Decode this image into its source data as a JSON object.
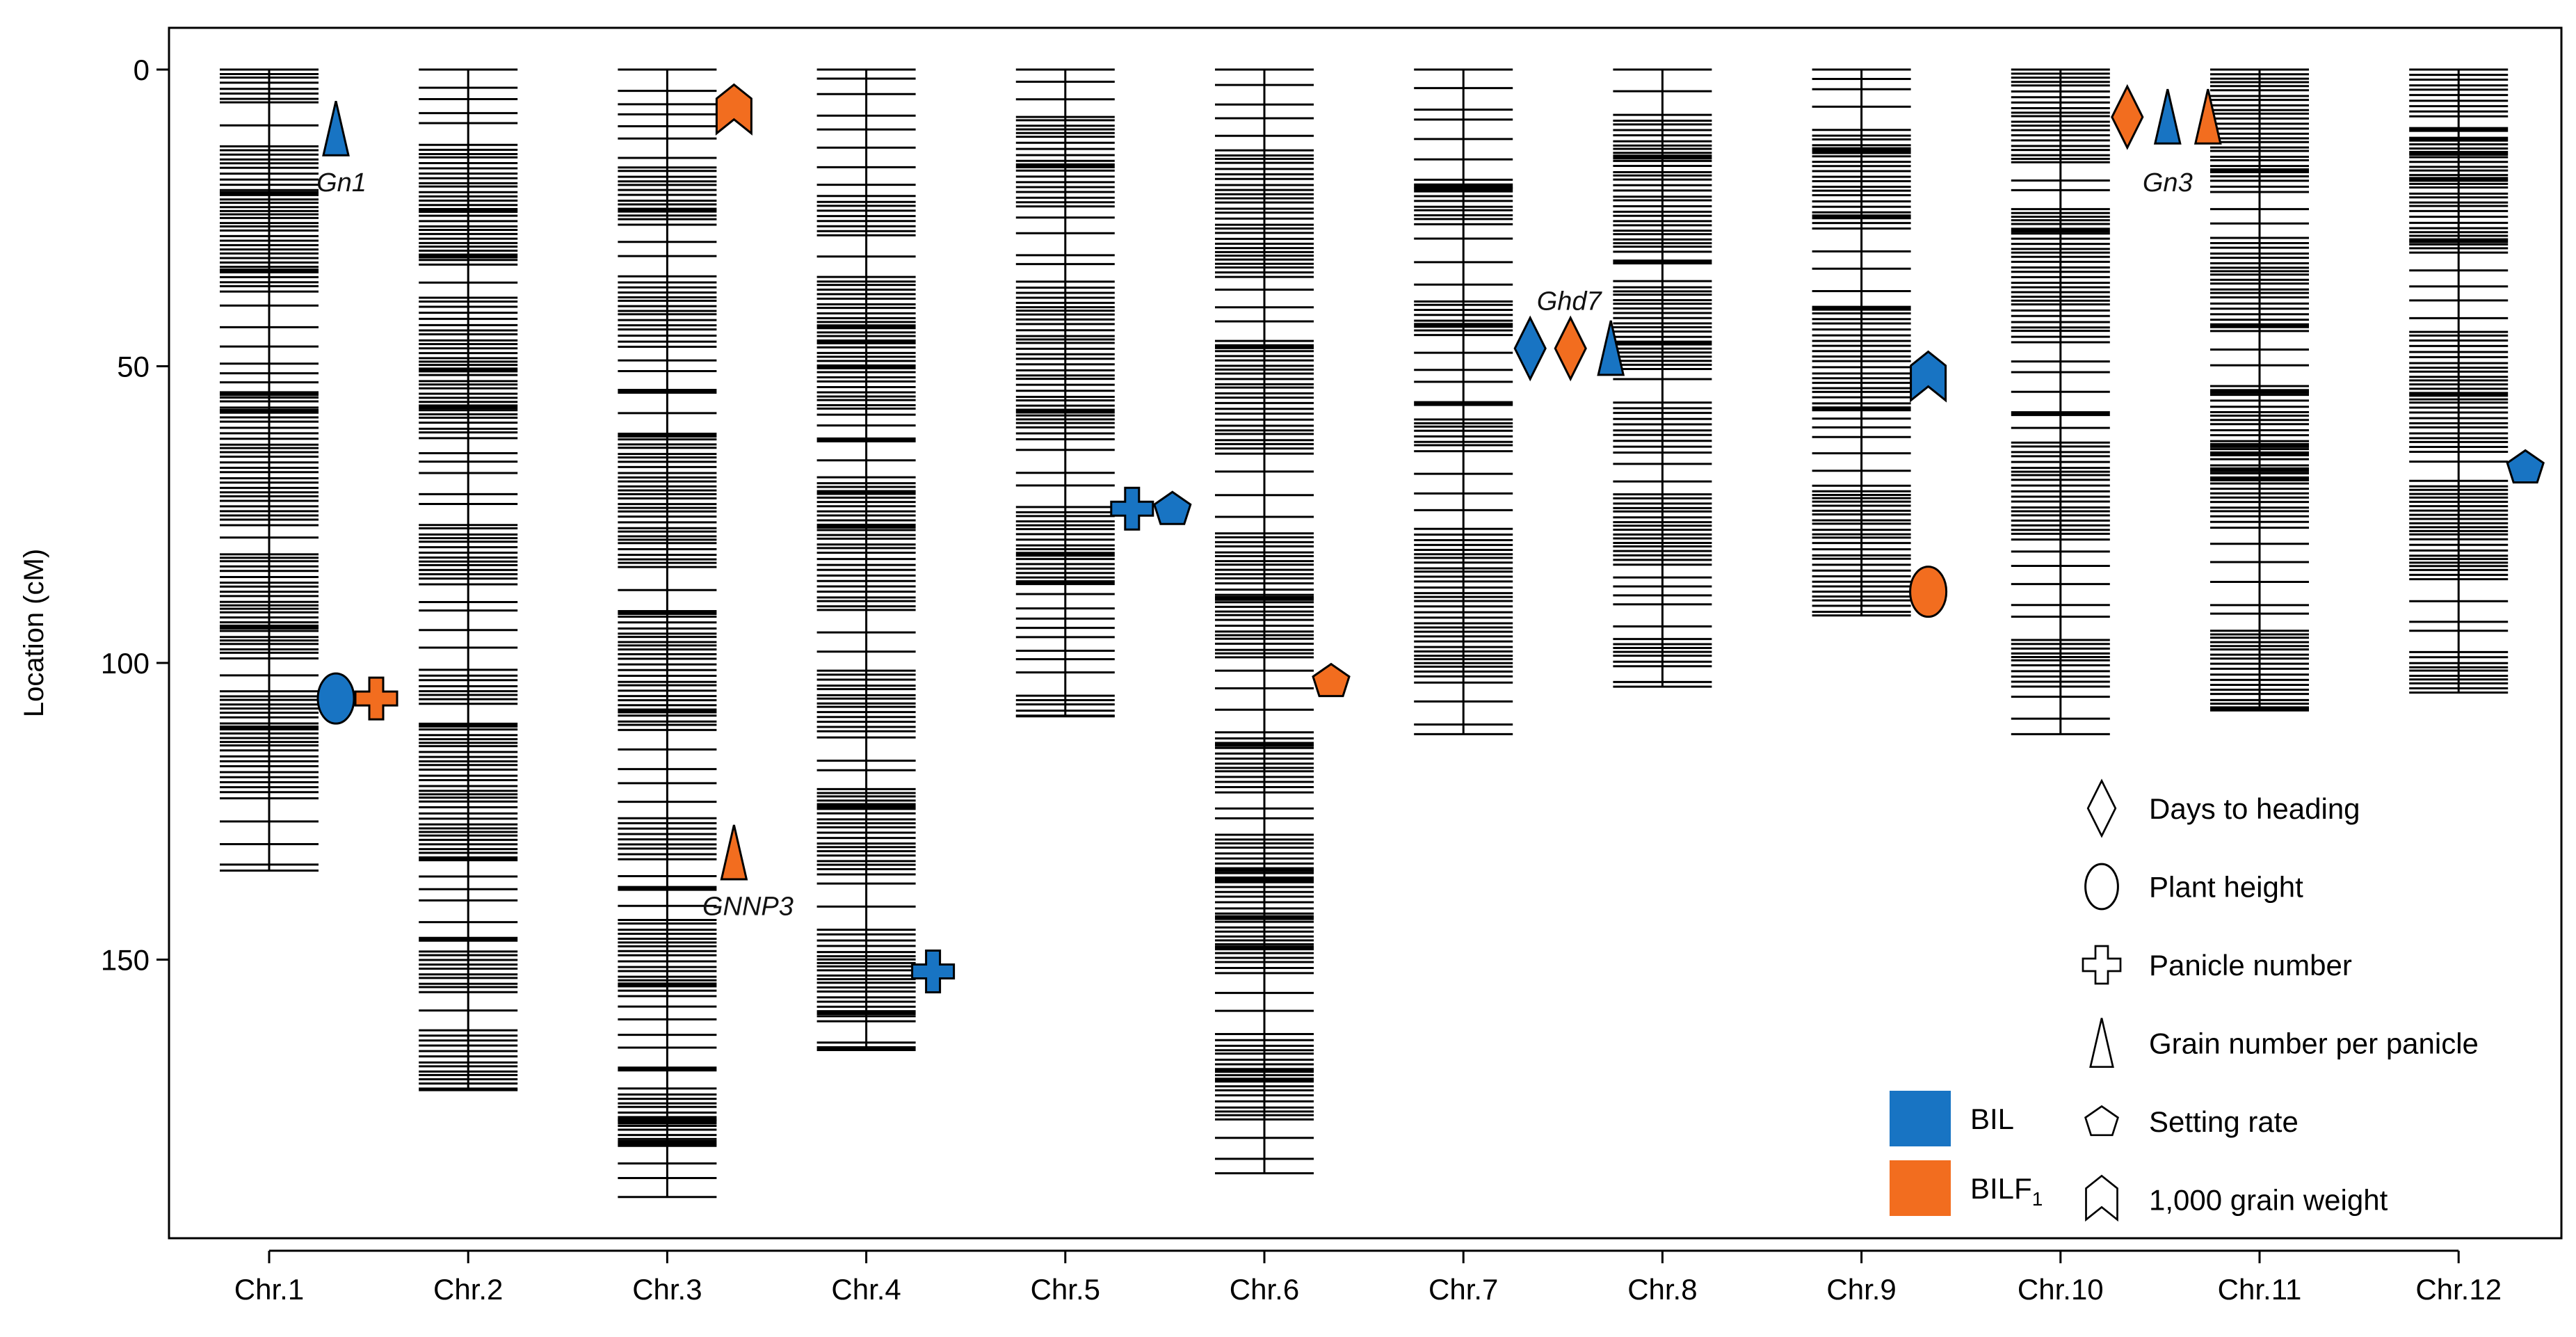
{
  "chart_data": {
    "type": "genetic-map",
    "title": "",
    "ylabel": "Location (cM)",
    "ylim": [
      -7,
      198
    ],
    "yticks": [
      0,
      50,
      100,
      150
    ],
    "colors": {
      "BIL": "#1874c3",
      "BILF1": "#f26d1f"
    },
    "chromosomes": [
      {
        "name": "Chr.1",
        "length": 135
      },
      {
        "name": "Chr.2",
        "length": 172
      },
      {
        "name": "Chr.3",
        "length": 190
      },
      {
        "name": "Chr.4",
        "length": 165
      },
      {
        "name": "Chr.5",
        "length": 109
      },
      {
        "name": "Chr.6",
        "length": 186
      },
      {
        "name": "Chr.7",
        "length": 112
      },
      {
        "name": "Chr.8",
        "length": 104
      },
      {
        "name": "Chr.9",
        "length": 92
      },
      {
        "name": "Chr.10",
        "length": 112
      },
      {
        "name": "Chr.11",
        "length": 108
      },
      {
        "name": "Chr.12",
        "length": 105
      }
    ],
    "qtls": [
      {
        "chr": 1,
        "pos": 10,
        "trait": "grain_number",
        "pop": "BIL",
        "slot": 0
      },
      {
        "chr": 1,
        "pos": 106,
        "trait": "plant_height",
        "pop": "BIL",
        "slot": 0
      },
      {
        "chr": 1,
        "pos": 106,
        "trait": "panicle_number",
        "pop": "BILF1",
        "slot": 1
      },
      {
        "chr": 3,
        "pos": 7,
        "trait": "grain_weight",
        "pop": "BILF1",
        "slot": 0
      },
      {
        "chr": 3,
        "pos": 132,
        "trait": "grain_number",
        "pop": "BILF1",
        "slot": 0
      },
      {
        "chr": 4,
        "pos": 152,
        "trait": "panicle_number",
        "pop": "BIL",
        "slot": 0
      },
      {
        "chr": 5,
        "pos": 74,
        "trait": "panicle_number",
        "pop": "BIL",
        "slot": 0
      },
      {
        "chr": 5,
        "pos": 74,
        "trait": "setting_rate",
        "pop": "BIL",
        "slot": 1
      },
      {
        "chr": 6,
        "pos": 103,
        "trait": "setting_rate",
        "pop": "BILF1",
        "slot": 0
      },
      {
        "chr": 7,
        "pos": 47,
        "trait": "days_to_heading",
        "pop": "BIL",
        "slot": 0
      },
      {
        "chr": 7,
        "pos": 47,
        "trait": "days_to_heading",
        "pop": "BILF1",
        "slot": 1
      },
      {
        "chr": 7,
        "pos": 47,
        "trait": "grain_number",
        "pop": "BIL",
        "slot": 2
      },
      {
        "chr": 9,
        "pos": 52,
        "trait": "grain_weight",
        "pop": "BIL",
        "slot": 0
      },
      {
        "chr": 9,
        "pos": 88,
        "trait": "plant_height",
        "pop": "BILF1",
        "slot": 0
      },
      {
        "chr": 10,
        "pos": 8,
        "trait": "days_to_heading",
        "pop": "BILF1",
        "slot": 0
      },
      {
        "chr": 10,
        "pos": 8,
        "trait": "grain_number",
        "pop": "BIL",
        "slot": 1
      },
      {
        "chr": 10,
        "pos": 8,
        "trait": "grain_number",
        "pop": "BILF1",
        "slot": 2
      },
      {
        "chr": 12,
        "pos": 67,
        "trait": "setting_rate",
        "pop": "BIL",
        "slot": 0
      }
    ],
    "gene_annotations": [
      {
        "text": "Gn1",
        "chr": 1,
        "pos": 19
      },
      {
        "text": "GNNP3",
        "chr": 3,
        "pos": 141
      },
      {
        "text": "Ghd7",
        "chr": 7,
        "pos": 39
      },
      {
        "text": "Gn3",
        "chr": 10,
        "pos": 19
      }
    ],
    "legend": {
      "traits": [
        {
          "key": "days_to_heading",
          "label": "Days to heading"
        },
        {
          "key": "plant_height",
          "label": "Plant height"
        },
        {
          "key": "panicle_number",
          "label": "Panicle number"
        },
        {
          "key": "grain_number",
          "label": "Grain number per panicle"
        },
        {
          "key": "setting_rate",
          "label": "Setting rate"
        },
        {
          "key": "grain_weight",
          "label": "1,000 grain weight"
        }
      ],
      "populations": [
        {
          "key": "BIL",
          "label": "BIL",
          "sub": ""
        },
        {
          "key": "BILF1",
          "label": "BILF",
          "sub": "1"
        }
      ]
    }
  }
}
